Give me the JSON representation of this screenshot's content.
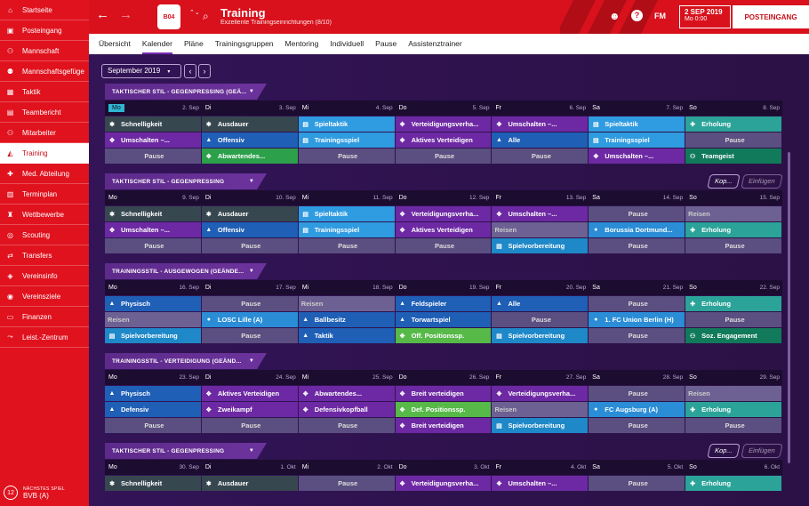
{
  "sidebar": {
    "items": [
      {
        "label": "Startseite",
        "icon": "house-icon",
        "glyph": "⌂"
      },
      {
        "label": "Posteingang",
        "icon": "inbox-icon",
        "glyph": "▣"
      },
      {
        "label": "Mannschaft",
        "icon": "team-icon",
        "glyph": "⚇"
      },
      {
        "label": "Mannschaftsgefüge",
        "icon": "dynamics-icon",
        "glyph": "⚉"
      },
      {
        "label": "Taktik",
        "icon": "tactics-icon",
        "glyph": "▦"
      },
      {
        "label": "Teambericht",
        "icon": "report-icon",
        "glyph": "▤"
      },
      {
        "label": "Mitarbeiter",
        "icon": "staff-icon",
        "glyph": "⚇"
      },
      {
        "label": "Training",
        "icon": "training-icon",
        "glyph": "◭"
      },
      {
        "label": "Med. Abteilung",
        "icon": "medical-icon",
        "glyph": "✚"
      },
      {
        "label": "Terminplan",
        "icon": "calendar-icon",
        "glyph": "▥"
      },
      {
        "label": "Wettbewerbe",
        "icon": "trophy-icon",
        "glyph": "♜"
      },
      {
        "label": "Scouting",
        "icon": "scouting-icon",
        "glyph": "◎"
      },
      {
        "label": "Transfers",
        "icon": "transfers-icon",
        "glyph": "⇄"
      },
      {
        "label": "Vereinsinfo",
        "icon": "club-info-icon",
        "glyph": "◈"
      },
      {
        "label": "Vereinsziele",
        "icon": "goals-icon",
        "glyph": "◉"
      },
      {
        "label": "Finanzen",
        "icon": "finances-icon",
        "glyph": "▭"
      },
      {
        "label": "Leist.-Zentrum",
        "icon": "performance-icon",
        "glyph": "⤳"
      }
    ],
    "active_index": 7,
    "next_match": {
      "label": "NÄCHSTES SPIEL",
      "value": "BVB (A)",
      "day_count": "12"
    }
  },
  "header": {
    "title": "Training",
    "subtitle": "Exzellente Trainingseinrichtungen (8/10)",
    "date": "2 SEP 2019",
    "time": "Mo 0:00",
    "continue_label": "POSTEINGANG",
    "fm": "FM",
    "club_abbr": "B04",
    "help": "?"
  },
  "tabs": [
    {
      "label": "Übersicht"
    },
    {
      "label": "Kalender",
      "active": true
    },
    {
      "label": "Pläne"
    },
    {
      "label": "Trainingsgruppen"
    },
    {
      "label": "Mentoring"
    },
    {
      "label": "Individuell"
    },
    {
      "label": "Pause"
    },
    {
      "label": "Assistenztrainer"
    }
  ],
  "month_selector": "September 2019",
  "buttons": {
    "copy": "Kop...",
    "paste": "Einfügen"
  },
  "colors": {
    "sidebar": "#e0121e",
    "accent_today": "#2fb5d0",
    "background": "#2a1245"
  },
  "weeks": [
    {
      "style": "TAKTISCHER STIL - GEGENPRESSING (GEÄ...",
      "show_buttons": false,
      "days": [
        {
          "n": "Mo",
          "d": "2. Sep",
          "today": true
        },
        {
          "n": "Di",
          "d": "3. Sep"
        },
        {
          "n": "Mi",
          "d": "4. Sep"
        },
        {
          "n": "Do",
          "d": "5. Sep"
        },
        {
          "n": "Fr",
          "d": "6. Sep"
        },
        {
          "n": "Sa",
          "d": "7. Sep"
        },
        {
          "n": "So",
          "d": "8. Sep"
        }
      ],
      "rows": [
        [
          {
            "t": "Schnelligkeit",
            "c": "c-dark",
            "i": "✱"
          },
          {
            "t": "Ausdauer",
            "c": "c-dark",
            "i": "✱"
          },
          {
            "t": "Spieltaktik",
            "c": "c-cyan",
            "i": "▤"
          },
          {
            "t": "Verteidigungsverha...",
            "c": "c-purple",
            "i": "✥"
          },
          {
            "t": "Umschalten –...",
            "c": "c-purple",
            "i": "✥"
          },
          {
            "t": "Spieltaktik",
            "c": "c-cyan",
            "i": "▤"
          },
          {
            "t": "Erholung",
            "c": "c-teal",
            "i": "✚"
          }
        ],
        [
          {
            "t": "Umschalten –...",
            "c": "c-purple",
            "i": "✥"
          },
          {
            "t": "Offensiv",
            "c": "c-navy",
            "i": "▲"
          },
          {
            "t": "Trainingsspiel",
            "c": "c-cyan",
            "i": "▤"
          },
          {
            "t": "Aktives Verteidigen",
            "c": "c-purple",
            "i": "✥"
          },
          {
            "t": "Alle",
            "c": "c-navy",
            "i": "▲"
          },
          {
            "t": "Trainingsspiel",
            "c": "c-cyan",
            "i": "▤"
          },
          {
            "t": "Pause",
            "c": "c-pause",
            "i": ""
          }
        ],
        [
          {
            "t": "Pause",
            "c": "c-pause",
            "i": ""
          },
          {
            "t": "Abwartendes...",
            "c": "c-green",
            "i": "✥"
          },
          {
            "t": "Pause",
            "c": "c-pause",
            "i": ""
          },
          {
            "t": "Pause",
            "c": "c-pause",
            "i": ""
          },
          {
            "t": "Pause",
            "c": "c-pause",
            "i": ""
          },
          {
            "t": "Umschalten –...",
            "c": "c-purple",
            "i": "✥"
          },
          {
            "t": "Teamgeist",
            "c": "c-soz",
            "i": "⚇"
          }
        ]
      ]
    },
    {
      "style": "TAKTISCHER STIL - GEGENPRESSING",
      "show_buttons": true,
      "days": [
        {
          "n": "Mo",
          "d": "9. Sep"
        },
        {
          "n": "Di",
          "d": "10. Sep"
        },
        {
          "n": "Mi",
          "d": "11. Sep"
        },
        {
          "n": "Do",
          "d": "12. Sep"
        },
        {
          "n": "Fr",
          "d": "13. Sep"
        },
        {
          "n": "Sa",
          "d": "14. Sep"
        },
        {
          "n": "So",
          "d": "15. Sep"
        }
      ],
      "rows": [
        [
          {
            "t": "Schnelligkeit",
            "c": "c-dark",
            "i": "✱"
          },
          {
            "t": "Ausdauer",
            "c": "c-dark",
            "i": "✱"
          },
          {
            "t": "Spieltaktik",
            "c": "c-cyan",
            "i": "▤"
          },
          {
            "t": "Verteidigungsverha...",
            "c": "c-purple",
            "i": "✥"
          },
          {
            "t": "Umschalten –...",
            "c": "c-purple",
            "i": "✥"
          },
          {
            "t": "Pause",
            "c": "c-pause",
            "i": ""
          },
          {
            "t": "Reisen",
            "c": "c-reise",
            "i": ""
          }
        ],
        [
          {
            "t": "Umschalten –...",
            "c": "c-purple",
            "i": "✥"
          },
          {
            "t": "Offensiv",
            "c": "c-navy",
            "i": "▲"
          },
          {
            "t": "Trainingsspiel",
            "c": "c-cyan",
            "i": "▤"
          },
          {
            "t": "Aktives Verteidigen",
            "c": "c-purple",
            "i": "✥"
          },
          {
            "t": "Reisen",
            "c": "c-reise",
            "i": ""
          },
          {
            "t": "Borussia Dortmund...",
            "c": "c-mtch",
            "i": "●"
          },
          {
            "t": "Erholung",
            "c": "c-teal",
            "i": "✚"
          }
        ],
        [
          {
            "t": "Pause",
            "c": "c-pause",
            "i": ""
          },
          {
            "t": "Pause",
            "c": "c-pause",
            "i": ""
          },
          {
            "t": "Pause",
            "c": "c-pause",
            "i": ""
          },
          {
            "t": "Pause",
            "c": "c-pause",
            "i": ""
          },
          {
            "t": "Spielvorbereitung",
            "c": "c-sp",
            "i": "▤"
          },
          {
            "t": "Pause",
            "c": "c-pause",
            "i": ""
          },
          {
            "t": "Pause",
            "c": "c-pause",
            "i": ""
          }
        ]
      ]
    },
    {
      "style": "TRAININGSSTIL - AUSGEWOGEN (GEÄNDE...",
      "show_buttons": false,
      "days": [
        {
          "n": "Mo",
          "d": "16. Sep"
        },
        {
          "n": "Di",
          "d": "17. Sep"
        },
        {
          "n": "Mi",
          "d": "18. Sep"
        },
        {
          "n": "Do",
          "d": "19. Sep"
        },
        {
          "n": "Fr",
          "d": "20. Sep"
        },
        {
          "n": "Sa",
          "d": "21. Sep"
        },
        {
          "n": "So",
          "d": "22. Sep"
        }
      ],
      "rows": [
        [
          {
            "t": "Physisch",
            "c": "c-navy",
            "i": "▲"
          },
          {
            "t": "Pause",
            "c": "c-pause",
            "i": ""
          },
          {
            "t": "Reisen",
            "c": "c-reise",
            "i": ""
          },
          {
            "t": "Feldspieler",
            "c": "c-navy",
            "i": "▲"
          },
          {
            "t": "Alle",
            "c": "c-navy",
            "i": "▲"
          },
          {
            "t": "Pause",
            "c": "c-pause",
            "i": ""
          },
          {
            "t": "Erholung",
            "c": "c-teal",
            "i": "✚"
          }
        ],
        [
          {
            "t": "Reisen",
            "c": "c-reise",
            "i": ""
          },
          {
            "t": "LOSC Lille (A)",
            "c": "c-mtch",
            "i": "●"
          },
          {
            "t": "Ballbesitz",
            "c": "c-navy",
            "i": "▲"
          },
          {
            "t": "Torwartspiel",
            "c": "c-navy",
            "i": "▲"
          },
          {
            "t": "Pause",
            "c": "c-pause",
            "i": ""
          },
          {
            "t": "1. FC Union Berlin (H)",
            "c": "c-mtch",
            "i": "●"
          },
          {
            "t": "Pause",
            "c": "c-pause",
            "i": ""
          }
        ],
        [
          {
            "t": "Spielvorbereitung",
            "c": "c-sp",
            "i": "▤"
          },
          {
            "t": "Pause",
            "c": "c-pause",
            "i": ""
          },
          {
            "t": "Taktik",
            "c": "c-navy",
            "i": "▲"
          },
          {
            "t": "Off. Positionssp.",
            "c": "c-lgreen",
            "i": "✥"
          },
          {
            "t": "Spielvorbereitung",
            "c": "c-sp",
            "i": "▤"
          },
          {
            "t": "Pause",
            "c": "c-pause",
            "i": ""
          },
          {
            "t": "Soz. Engagement",
            "c": "c-soz",
            "i": "⚇"
          }
        ]
      ]
    },
    {
      "style": "TRAININGSSTIL - VERTEIDIGUNG (GEÄND...",
      "show_buttons": false,
      "days": [
        {
          "n": "Mo",
          "d": "23. Sep"
        },
        {
          "n": "Di",
          "d": "24. Sep"
        },
        {
          "n": "Mi",
          "d": "25. Sep"
        },
        {
          "n": "Do",
          "d": "26. Sep"
        },
        {
          "n": "Fr",
          "d": "27. Sep"
        },
        {
          "n": "Sa",
          "d": "28. Sep"
        },
        {
          "n": "So",
          "d": "29. Sep"
        }
      ],
      "rows": [
        [
          {
            "t": "Physisch",
            "c": "c-navy",
            "i": "▲"
          },
          {
            "t": "Aktives Verteidigen",
            "c": "c-purple",
            "i": "✥"
          },
          {
            "t": "Abwartendes...",
            "c": "c-purple",
            "i": "✥"
          },
          {
            "t": "Breit verteidigen",
            "c": "c-purple",
            "i": "✥"
          },
          {
            "t": "Verteidigungsverha...",
            "c": "c-purple",
            "i": "✥"
          },
          {
            "t": "Pause",
            "c": "c-pause",
            "i": ""
          },
          {
            "t": "Reisen",
            "c": "c-reise",
            "i": ""
          }
        ],
        [
          {
            "t": "Defensiv",
            "c": "c-navy",
            "i": "▲"
          },
          {
            "t": "Zweikampf",
            "c": "c-purple",
            "i": "✥"
          },
          {
            "t": "Defensivkopfball",
            "c": "c-purple",
            "i": "✥"
          },
          {
            "t": "Def. Positionssp.",
            "c": "c-lgreen",
            "i": "✥"
          },
          {
            "t": "Reisen",
            "c": "c-reise",
            "i": ""
          },
          {
            "t": "FC Augsburg (A)",
            "c": "c-mtch",
            "i": "●"
          },
          {
            "t": "Erholung",
            "c": "c-teal",
            "i": "✚"
          }
        ],
        [
          {
            "t": "Pause",
            "c": "c-pause",
            "i": ""
          },
          {
            "t": "Pause",
            "c": "c-pause",
            "i": ""
          },
          {
            "t": "Pause",
            "c": "c-pause",
            "i": ""
          },
          {
            "t": "Breit verteidigen",
            "c": "c-purple",
            "i": "✥"
          },
          {
            "t": "Spielvorbereitung",
            "c": "c-sp",
            "i": "▤"
          },
          {
            "t": "Pause",
            "c": "c-pause",
            "i": ""
          },
          {
            "t": "Pause",
            "c": "c-pause",
            "i": ""
          }
        ]
      ]
    },
    {
      "style": "TAKTISCHER STIL - GEGENPRESSING",
      "show_buttons": true,
      "days": [
        {
          "n": "Mo",
          "d": "30. Sep"
        },
        {
          "n": "Di",
          "d": "1. Okt"
        },
        {
          "n": "Mi",
          "d": "2. Okt"
        },
        {
          "n": "Do",
          "d": "3. Okt"
        },
        {
          "n": "Fr",
          "d": "4. Okt"
        },
        {
          "n": "Sa",
          "d": "5. Okt"
        },
        {
          "n": "So",
          "d": "6. Okt"
        }
      ],
      "rows": [
        [
          {
            "t": "Schnelligkeit",
            "c": "c-dark",
            "i": "✱"
          },
          {
            "t": "Ausdauer",
            "c": "c-dark",
            "i": "✱"
          },
          {
            "t": "Pause",
            "c": "c-pause",
            "i": ""
          },
          {
            "t": "Verteidigungsverha...",
            "c": "c-purple",
            "i": "✥"
          },
          {
            "t": "Umschalten –...",
            "c": "c-purple",
            "i": "✥"
          },
          {
            "t": "Pause",
            "c": "c-pause",
            "i": ""
          },
          {
            "t": "Erholung",
            "c": "c-teal",
            "i": "✚"
          }
        ]
      ]
    }
  ]
}
